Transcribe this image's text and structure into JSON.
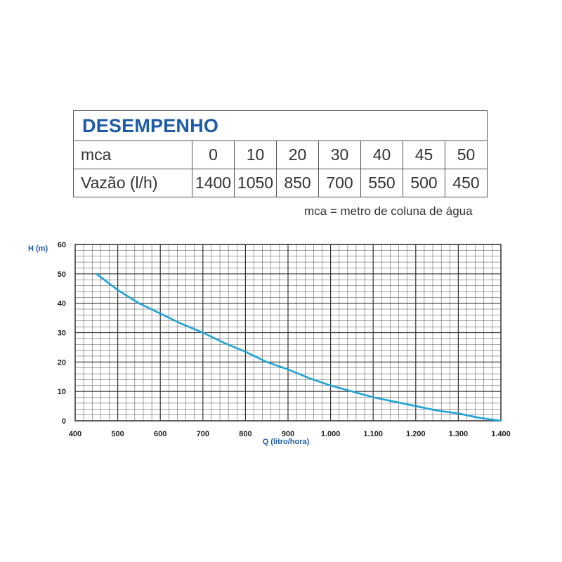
{
  "table": {
    "title": "DESEMPENHO",
    "rows": [
      {
        "label": "mca",
        "values": [
          "0",
          "10",
          "20",
          "30",
          "40",
          "45",
          "50"
        ]
      },
      {
        "label": "Vazão (l/h)",
        "values": [
          "1400",
          "1050",
          "850",
          "700",
          "550",
          "500",
          "450"
        ]
      }
    ]
  },
  "note": "mca = metro de coluna de água",
  "colors": {
    "accent": "#1d5ba8",
    "curve": "#21a3d6",
    "grid": "#333333"
  },
  "chart_data": {
    "type": "line",
    "title": "",
    "xlabel": "Q (litro/hora)",
    "ylabel": "H (m)",
    "xlim": [
      400,
      1400
    ],
    "ylim": [
      0,
      60
    ],
    "grid": true,
    "x_tick_values": [
      400,
      500,
      600,
      700,
      800,
      900,
      1000,
      1100,
      1200,
      1300,
      1400
    ],
    "x_tick_labels": [
      "400",
      "500",
      "600",
      "700",
      "800",
      "900",
      "1.000",
      "1.100",
      "1.200",
      "1.300",
      "1.400"
    ],
    "y_tick_values": [
      0,
      10,
      20,
      30,
      40,
      50,
      60
    ],
    "y_tick_labels": [
      "0",
      "10",
      "20",
      "30",
      "40",
      "50",
      "60"
    ],
    "series": [
      {
        "x": [
          450,
          500,
          550,
          600,
          650,
          700,
          750,
          800,
          850,
          900,
          950,
          1000,
          1050,
          1100,
          1150,
          1200,
          1250,
          1300,
          1350,
          1400
        ],
        "y": [
          50,
          44.5,
          40,
          36.5,
          33,
          30,
          26.5,
          23.5,
          20,
          17.5,
          14.5,
          12,
          10,
          8,
          6.5,
          5,
          3.5,
          2.5,
          1,
          0
        ]
      }
    ]
  }
}
